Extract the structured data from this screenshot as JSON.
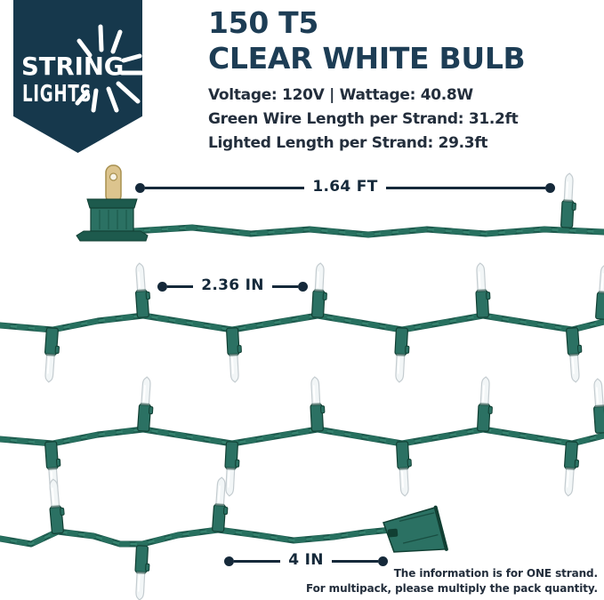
{
  "brand": {
    "name_line1": "STRING",
    "name_line2": "LIGHTS"
  },
  "header": {
    "title_line1": "150 T5",
    "title_line2": "CLEAR WHITE BULB",
    "specs": [
      "Voltage: 120V | Wattage: 40.8W",
      "Green Wire Length per Strand: 31.2ft",
      "Lighted Length per Strand: 29.3ft"
    ]
  },
  "measurements": [
    {
      "id": "plug-to-first-bulb",
      "label": "1.64 FT"
    },
    {
      "id": "bulb-spacing",
      "label": "2.36 IN"
    },
    {
      "id": "last-bulb-to-connector",
      "label": "4 IN"
    }
  ],
  "note": {
    "line1": "The information is for ONE strand.",
    "line2": "For multipack, please multiply the pack quantity."
  },
  "colors": {
    "navy": "#15293a",
    "badge": "#16384c",
    "title": "#1d3d55",
    "spec_text": "#232e3c",
    "wire_dark": "#1d5a4d",
    "wire_mid": "#27705f",
    "wire_light": "#35836f",
    "socket": "#2b7163",
    "socket_dark": "#113f33",
    "glass": "#f2f6f7",
    "glass_edge": "#c4ccd0",
    "brass": "#dcc48e",
    "brass_dark": "#a8904f"
  }
}
